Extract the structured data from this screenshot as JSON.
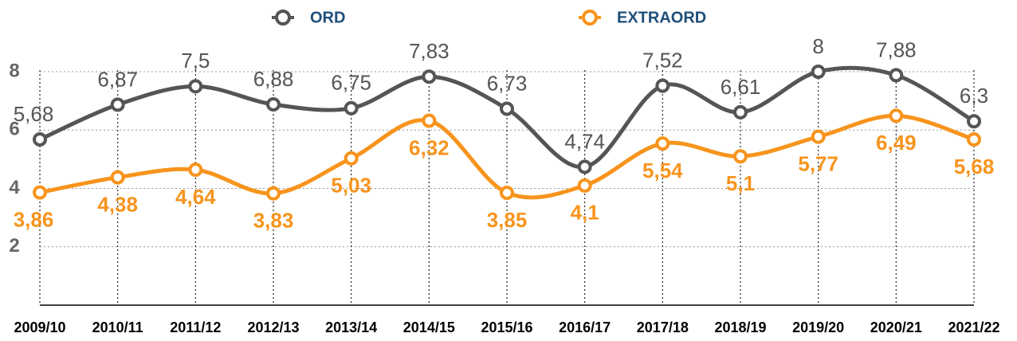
{
  "chart_data": {
    "type": "line",
    "categories": [
      "2009/10",
      "2010/11",
      "2011/12",
      "2012/13",
      "2013/14",
      "2014/15",
      "2015/16",
      "2016/17",
      "2017/18",
      "2018/19",
      "2019/20",
      "2020/21",
      "2021/22"
    ],
    "series": [
      {
        "name": "ORD",
        "color": "#555555",
        "values": [
          5.68,
          6.87,
          7.5,
          6.88,
          6.75,
          7.83,
          6.73,
          4.74,
          7.52,
          6.61,
          8,
          7.88,
          6.3
        ],
        "value_labels": [
          "5,68",
          "6,87",
          "7,5",
          "6,88",
          "6,75",
          "7,83",
          "6,73",
          "4,74",
          "7,52",
          "6,61",
          "8",
          "7,88",
          "6,3"
        ]
      },
      {
        "name": "EXTRAORD",
        "color": "#f7941d",
        "values": [
          3.86,
          4.38,
          4.64,
          3.83,
          5.03,
          6.32,
          3.85,
          4.1,
          5.54,
          5.1,
          5.77,
          6.49,
          5.68
        ],
        "value_labels": [
          "3,86",
          "4,38",
          "4,64",
          "3,83",
          "5,03",
          "6,32",
          "3,85",
          "4,1",
          "5,54",
          "5,1",
          "5,77",
          "6,49",
          "5,68"
        ]
      }
    ],
    "ylim": [
      0,
      8
    ],
    "yticks": [
      2,
      4,
      6,
      8
    ],
    "grid": true,
    "legend": "top"
  }
}
